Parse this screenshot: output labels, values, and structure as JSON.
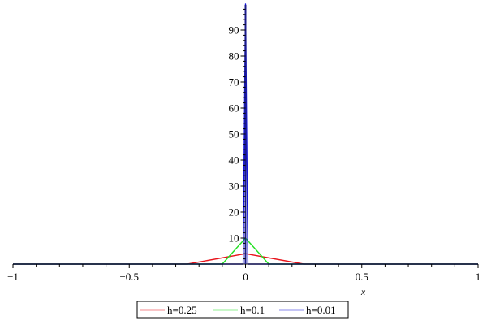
{
  "chart_data": {
    "type": "line",
    "title": "",
    "xlabel": "x",
    "ylabel": "",
    "xlim": [
      -1,
      1
    ],
    "ylim": [
      0,
      100
    ],
    "x_ticks": [
      -1,
      -0.5,
      0,
      0.5,
      1
    ],
    "x_tick_labels": [
      "−1",
      "−0.5",
      "0",
      "0.5",
      "1"
    ],
    "y_ticks": [
      10,
      20,
      30,
      40,
      50,
      60,
      70,
      80,
      90
    ],
    "y_tick_labels": [
      "10",
      "20",
      "30",
      "40",
      "50",
      "60",
      "70",
      "80",
      "90"
    ],
    "grid": false,
    "legend_position": "bottom",
    "series": [
      {
        "name": "h=0.25",
        "color": "#e8141c",
        "x": [
          -1,
          -0.25,
          0,
          0.25,
          1
        ],
        "y": [
          0,
          0,
          4,
          0,
          0
        ]
      },
      {
        "name": "h=0.1",
        "color": "#22e022",
        "x": [
          -1,
          -0.1,
          0,
          0.1,
          1
        ],
        "y": [
          0,
          0,
          10,
          0,
          0
        ]
      },
      {
        "name": "h=0.01",
        "color": "#1414d8",
        "x": [
          -1,
          -0.01,
          0,
          0.01,
          1
        ],
        "y": [
          0,
          0,
          100,
          0,
          0
        ]
      }
    ]
  }
}
